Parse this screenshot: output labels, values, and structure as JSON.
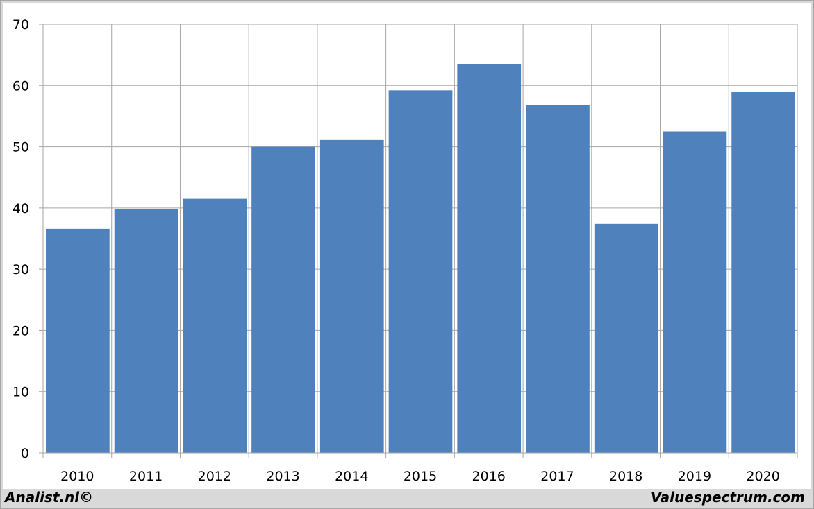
{
  "chart_data": {
    "type": "bar",
    "categories": [
      "2010",
      "2011",
      "2012",
      "2013",
      "2014",
      "2015",
      "2016",
      "2017",
      "2018",
      "2019",
      "2020"
    ],
    "values": [
      36.6,
      39.8,
      41.5,
      50.0,
      51.1,
      59.2,
      63.5,
      56.8,
      37.4,
      52.5,
      59.0
    ],
    "title": "",
    "xlabel": "",
    "ylabel": "",
    "ylim": [
      0,
      70
    ],
    "yticks": [
      "0",
      "10",
      "20",
      "30",
      "40",
      "50",
      "60",
      "70"
    ],
    "grid": true,
    "legend": "none",
    "bar_color": "#4f81bd",
    "grid_color": "#a6a6a6"
  },
  "footer": {
    "left": "Analist.nl©",
    "right": "Valuespectrum.com"
  }
}
